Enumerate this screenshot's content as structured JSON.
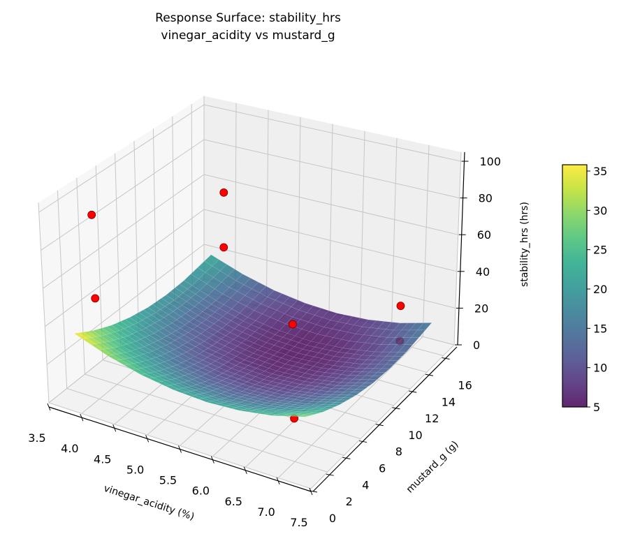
{
  "chart_data": {
    "type": "surface",
    "title": "Response Surface: stability_hrs",
    "subtitle": "vinegar_acidity vs mustard_g",
    "xlabel": "vinegar_acidity (%)",
    "ylabel": "mustard_g (g)",
    "zlabel": "stability_hrs (hrs)",
    "xlim": [
      3.5,
      7.5
    ],
    "ylim": [
      0,
      17.3
    ],
    "zlim": [
      0,
      105
    ],
    "xticks": [
      3.5,
      4.0,
      4.5,
      5.0,
      5.5,
      6.0,
      6.5,
      7.0,
      7.5
    ],
    "xtick_labels": [
      "3.5",
      "4.0",
      "4.5",
      "5.0",
      "5.5",
      "6.0",
      "6.5",
      "7.0",
      "7.5"
    ],
    "yticks": [
      0,
      2,
      4,
      6,
      8,
      10,
      12,
      14,
      16
    ],
    "ytick_labels": [
      "0",
      "2",
      "4",
      "6",
      "8",
      "10",
      "12",
      "14",
      "16"
    ],
    "zticks": [
      0,
      20,
      40,
      60,
      80,
      100
    ],
    "ztick_labels": [
      "0",
      "20",
      "40",
      "60",
      "80",
      "100"
    ],
    "grid": true,
    "colormap": "viridis",
    "surface": {
      "x": [
        3.8,
        4.3,
        4.8,
        5.3,
        5.8,
        6.3,
        6.8,
        7.3
      ],
      "y": [
        1,
        3,
        5,
        7,
        9,
        11,
        13,
        16
      ],
      "z": [
        [
          36.0,
          29.7,
          25.2,
          22.6,
          21.7,
          22.7,
          25.4,
          30.0
        ],
        [
          30.2,
          23.9,
          19.5,
          16.8,
          15.9,
          16.9,
          19.7,
          24.2
        ],
        [
          25.6,
          19.4,
          14.9,
          12.2,
          11.4,
          12.3,
          15.1,
          19.7
        ],
        [
          22.3,
          16.0,
          11.5,
          8.9,
          8.0,
          9.0,
          11.7,
          16.3
        ],
        [
          20.1,
          13.8,
          9.4,
          6.7,
          5.8,
          6.8,
          9.6,
          14.1
        ],
        [
          19.1,
          12.9,
          8.4,
          5.7,
          4.9,
          5.8,
          8.6,
          13.2
        ],
        [
          19.4,
          13.1,
          8.6,
          6.0,
          5.1,
          6.1,
          8.8,
          13.4
        ],
        [
          22.0,
          15.7,
          11.2,
          8.6,
          7.7,
          8.7,
          11.4,
          16.0
        ]
      ]
    },
    "points": [
      {
        "x": 4.0,
        "y": 2,
        "z": 97
      },
      {
        "x": 4.0,
        "y": 2,
        "z": 53
      },
      {
        "x": 4.0,
        "y": 16,
        "z": 59
      },
      {
        "x": 4.0,
        "y": 16,
        "z": 28
      },
      {
        "x": 7.0,
        "y": 2,
        "z": 70
      },
      {
        "x": 7.0,
        "y": 2,
        "z": 22
      },
      {
        "x": 7.0,
        "y": 14.5,
        "z": 29
      },
      {
        "x": 7.0,
        "y": 14.5,
        "z": 10
      }
    ],
    "point_color": "#ff0000",
    "colorbar": {
      "label": "stability_hrs (hrs)",
      "range": [
        5,
        35.8
      ],
      "ticks": [
        5,
        10,
        15,
        20,
        25,
        30,
        35
      ],
      "tick_labels": [
        "5",
        "10",
        "15",
        "20",
        "25",
        "30",
        "35"
      ]
    }
  }
}
